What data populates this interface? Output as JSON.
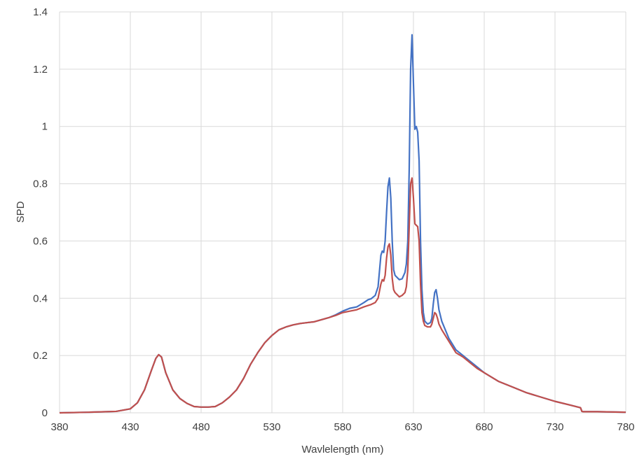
{
  "chart_data": {
    "type": "line",
    "xlabel": "Wavlelength (nm)",
    "ylabel": "SPD",
    "xlim": [
      380,
      780
    ],
    "ylim": [
      0,
      1.4
    ],
    "x_ticks": [
      "380",
      "430",
      "480",
      "530",
      "580",
      "630",
      "680",
      "730",
      "780"
    ],
    "y_ticks": [
      "0",
      "0.2",
      "0.4",
      "0.6",
      "0.8",
      "1",
      "1.2",
      "1.4"
    ],
    "grid": true,
    "legend": "none",
    "series": [
      {
        "color": "#4472c4",
        "x": [
          380,
          400,
          420,
          430,
          435,
          440,
          445,
          448,
          450,
          452,
          455,
          460,
          465,
          470,
          475,
          480,
          485,
          490,
          495,
          500,
          505,
          510,
          515,
          520,
          525,
          530,
          535,
          540,
          545,
          550,
          555,
          560,
          565,
          570,
          575,
          580,
          585,
          590,
          595,
          598,
          600,
          603,
          605,
          607,
          608,
          609,
          610,
          611,
          612,
          613,
          614,
          615,
          616,
          617,
          618,
          620,
          622,
          624,
          625,
          626,
          627,
          628,
          629,
          630,
          631,
          632,
          633,
          634,
          635,
          636,
          637,
          638,
          640,
          642,
          643,
          644,
          645,
          646,
          647,
          648,
          650,
          655,
          660,
          665,
          670,
          675,
          680,
          690,
          700,
          710,
          720,
          730,
          740,
          748,
          749,
          750,
          760,
          770,
          780
        ],
        "y": [
          0,
          0.002,
          0.005,
          0.014,
          0.035,
          0.08,
          0.15,
          0.19,
          0.203,
          0.195,
          0.14,
          0.08,
          0.05,
          0.033,
          0.022,
          0.02,
          0.02,
          0.022,
          0.035,
          0.055,
          0.08,
          0.12,
          0.17,
          0.21,
          0.245,
          0.27,
          0.29,
          0.3,
          0.307,
          0.312,
          0.315,
          0.318,
          0.325,
          0.332,
          0.342,
          0.355,
          0.365,
          0.37,
          0.385,
          0.395,
          0.398,
          0.41,
          0.44,
          0.55,
          0.565,
          0.56,
          0.6,
          0.7,
          0.79,
          0.82,
          0.75,
          0.6,
          0.5,
          0.48,
          0.475,
          0.465,
          0.468,
          0.49,
          0.52,
          0.6,
          0.85,
          1.2,
          1.32,
          1.15,
          0.99,
          1.0,
          0.98,
          0.88,
          0.6,
          0.43,
          0.35,
          0.32,
          0.31,
          0.315,
          0.33,
          0.38,
          0.42,
          0.43,
          0.4,
          0.36,
          0.32,
          0.26,
          0.22,
          0.2,
          0.18,
          0.16,
          0.14,
          0.11,
          0.09,
          0.07,
          0.055,
          0.04,
          0.028,
          0.018,
          0.005,
          0.004,
          0.004,
          0.003,
          0.002
        ]
      },
      {
        "color": "#c0504d",
        "x": [
          380,
          400,
          420,
          430,
          435,
          440,
          445,
          448,
          450,
          452,
          455,
          460,
          465,
          470,
          475,
          480,
          485,
          490,
          495,
          500,
          505,
          510,
          515,
          520,
          525,
          530,
          535,
          540,
          545,
          550,
          555,
          560,
          565,
          570,
          575,
          580,
          585,
          590,
          595,
          598,
          600,
          603,
          605,
          607,
          608,
          609,
          610,
          611,
          612,
          613,
          614,
          615,
          616,
          617,
          618,
          620,
          622,
          624,
          625,
          626,
          627,
          628,
          629,
          630,
          631,
          632,
          633,
          634,
          635,
          636,
          637,
          638,
          640,
          642,
          643,
          644,
          645,
          646,
          647,
          648,
          650,
          655,
          660,
          665,
          670,
          675,
          680,
          690,
          700,
          710,
          720,
          730,
          740,
          748,
          749,
          750,
          760,
          770,
          780
        ],
        "y": [
          0,
          0.002,
          0.005,
          0.014,
          0.035,
          0.08,
          0.15,
          0.19,
          0.203,
          0.195,
          0.14,
          0.08,
          0.05,
          0.033,
          0.022,
          0.02,
          0.02,
          0.022,
          0.035,
          0.055,
          0.08,
          0.12,
          0.17,
          0.21,
          0.245,
          0.27,
          0.29,
          0.3,
          0.307,
          0.312,
          0.315,
          0.318,
          0.325,
          0.332,
          0.34,
          0.35,
          0.355,
          0.36,
          0.37,
          0.375,
          0.378,
          0.385,
          0.4,
          0.45,
          0.465,
          0.46,
          0.48,
          0.54,
          0.58,
          0.59,
          0.55,
          0.47,
          0.43,
          0.42,
          0.415,
          0.405,
          0.41,
          0.42,
          0.44,
          0.5,
          0.65,
          0.8,
          0.82,
          0.75,
          0.66,
          0.655,
          0.65,
          0.6,
          0.45,
          0.35,
          0.32,
          0.305,
          0.3,
          0.3,
          0.31,
          0.33,
          0.35,
          0.345,
          0.33,
          0.31,
          0.29,
          0.25,
          0.21,
          0.195,
          0.175,
          0.155,
          0.14,
          0.11,
          0.09,
          0.07,
          0.055,
          0.04,
          0.028,
          0.018,
          0.005,
          0.004,
          0.004,
          0.003,
          0.002
        ]
      }
    ]
  }
}
